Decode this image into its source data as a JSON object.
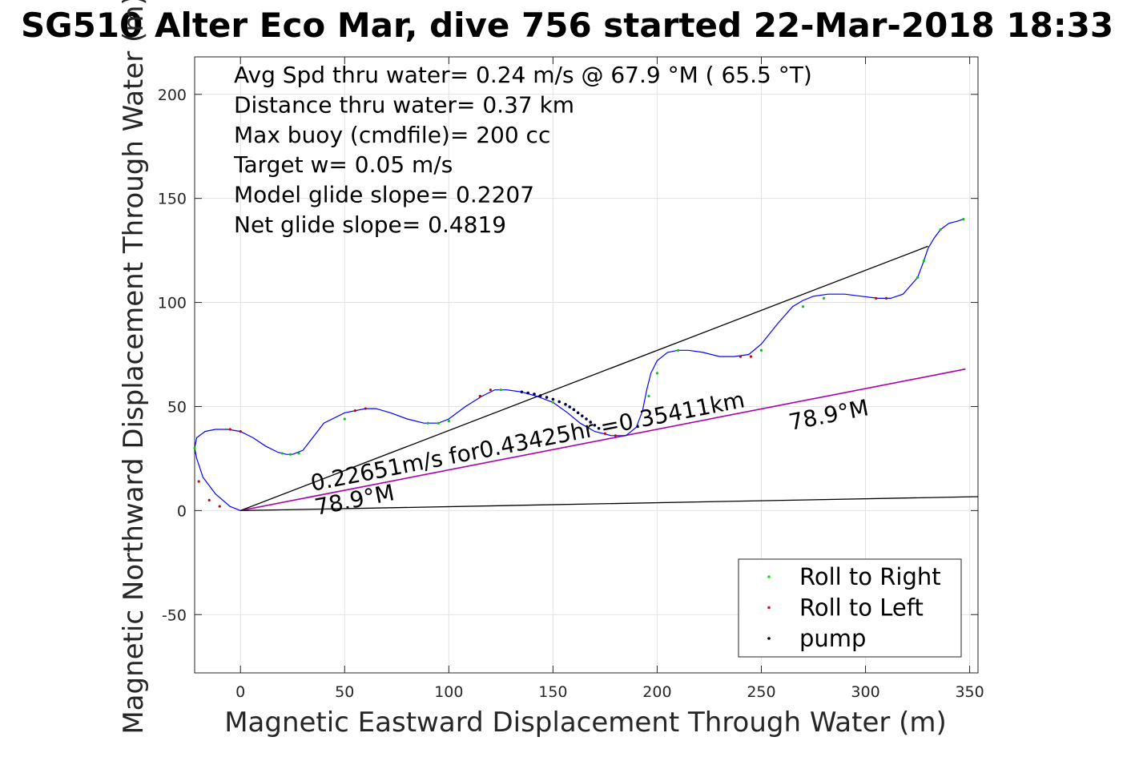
{
  "chart_data": {
    "type": "line",
    "title": "SG510 Alter Eco Mar, dive 756 started 22-Mar-2018 18:33",
    "xlabel": "Magnetic Eastward Displacement Through Water (m)",
    "ylabel": "Magnetic Northward Displacement Through Water (m)",
    "xlim": [
      -22,
      354
    ],
    "ylim": [
      -78,
      218
    ],
    "xticks": [
      "0",
      "50",
      "100",
      "150",
      "200",
      "250",
      "300",
      "350"
    ],
    "xtick_values": [
      0,
      50,
      100,
      150,
      200,
      250,
      300,
      350
    ],
    "yticks": [
      "-50",
      "0",
      "50",
      "100",
      "150",
      "200"
    ],
    "ytick_values": [
      -50,
      0,
      50,
      100,
      150,
      200
    ],
    "grid": true,
    "stats": [
      "Avg Spd thru water=  0.24 m/s @  67.9 °M ( 65.5 °T)",
      "Distance thru water=  0.37 km",
      "Max buoy (cmdfile)= 200 cc",
      "Target w= 0.05 m/s",
      "Model glide slope= 0.2207",
      "Net glide slope= 0.4819"
    ],
    "annotations": {
      "speed_label": "0.22651m/s for0.43425hr =0.35411km",
      "heading_label_a": "78.9°M",
      "heading_label_b": "78.9°M"
    },
    "legend": {
      "position": "bottom-right",
      "entries": [
        {
          "label": "Roll to Right",
          "color": "#00ee00"
        },
        {
          "label": "Roll to Left",
          "color": "#ff0000"
        },
        {
          "label": "pump",
          "color": "#000000"
        }
      ]
    },
    "lines": {
      "track": {
        "color": "#0000ff",
        "x": [
          0,
          -5,
          -12,
          -18,
          -21,
          -22,
          -21,
          -17,
          -12,
          -6,
          0,
          6,
          12,
          18,
          22,
          25,
          30,
          40,
          50,
          60,
          65,
          72,
          80,
          88,
          95,
          100,
          108,
          116,
          122,
          128,
          135,
          142,
          150,
          157,
          163,
          170,
          178,
          185,
          190,
          193,
          195,
          197,
          200,
          205,
          210,
          215,
          222,
          230,
          237,
          244,
          250,
          258,
          265,
          270,
          275,
          282,
          290,
          298,
          306,
          312,
          318,
          325,
          328,
          330,
          333,
          336,
          340,
          344,
          347
        ],
        "y": [
          0,
          2,
          8,
          16,
          25,
          30,
          35,
          38,
          39,
          39,
          38,
          35,
          31,
          28,
          27,
          27,
          29,
          42,
          47,
          49,
          49,
          47,
          44,
          42,
          42,
          44,
          50,
          55,
          58,
          58,
          57,
          55,
          52,
          47,
          42,
          38,
          36,
          36,
          40,
          48,
          58,
          66,
          72,
          76,
          77,
          77,
          76,
          74,
          74,
          75,
          80,
          90,
          98,
          101,
          103,
          104,
          104,
          103,
          102,
          102,
          104,
          112,
          120,
          126,
          131,
          135,
          138,
          139,
          140
        ]
      },
      "pump": {
        "x": [
          135,
          138,
          141,
          144,
          147,
          150,
          153,
          156,
          158,
          160,
          162,
          164,
          166,
          168,
          170,
          172
        ],
        "y": [
          57,
          56.5,
          56,
          55.2,
          54.4,
          53.5,
          52.3,
          51,
          49.8,
          48.5,
          47,
          45.5,
          44,
          42.5,
          41,
          39.5
        ]
      },
      "roll_right": {
        "x": [
          -22,
          20,
          24,
          28,
          50,
          90,
          95,
          100,
          125,
          150,
          196,
          200,
          210,
          250,
          270,
          280,
          325,
          328,
          336,
          347
        ],
        "y": [
          30,
          27.5,
          27,
          27.5,
          44,
          42,
          42,
          43,
          58,
          52,
          55,
          66,
          77,
          77,
          98,
          102,
          112,
          120,
          135,
          140
        ]
      },
      "roll_left": {
        "x": [
          -20,
          -15,
          -10,
          -5,
          0,
          55,
          60,
          115,
          120,
          175,
          180,
          240,
          245,
          305,
          310
        ],
        "y": [
          14,
          5,
          2,
          39,
          38,
          48,
          49,
          55,
          58,
          37,
          36,
          74,
          74,
          102,
          102
        ]
      },
      "net_glide": {
        "color": "#000000",
        "x": [
          0,
          330
        ],
        "y": [
          0,
          127
        ]
      },
      "heading": {
        "color": "#aa00aa",
        "x": [
          0,
          348
        ],
        "y": [
          0,
          68
        ]
      },
      "current": {
        "color": "#000000",
        "x": [
          0,
          354
        ],
        "y": [
          0,
          6.7
        ]
      }
    }
  }
}
